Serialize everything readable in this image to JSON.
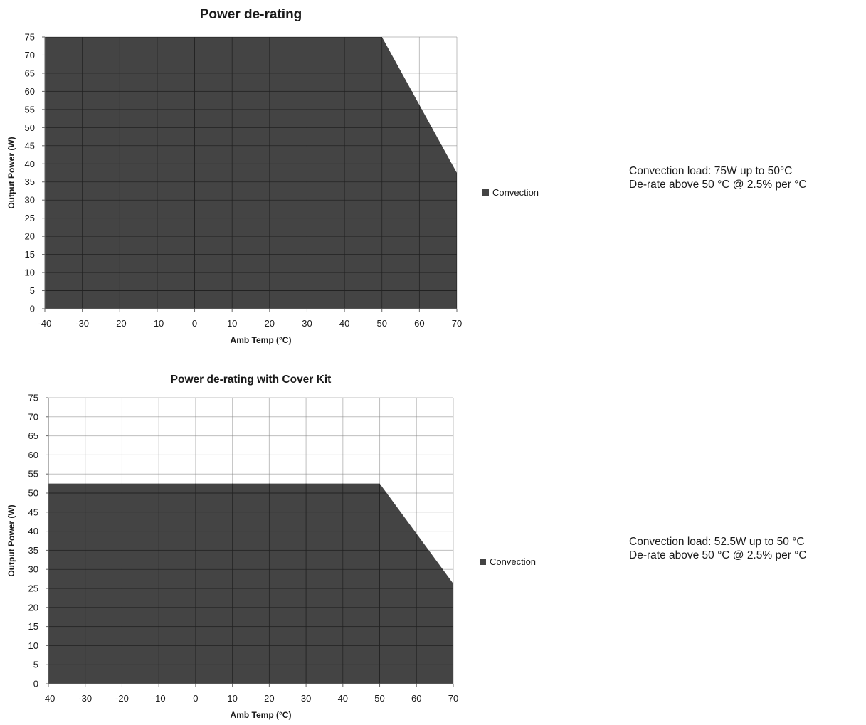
{
  "chart_data": [
    {
      "type": "area",
      "title": "Power de-rating",
      "xlabel": "Amb Temp (°C)",
      "ylabel": "Output Power (W)",
      "xlim": [
        -40,
        70
      ],
      "ylim": [
        0,
        75
      ],
      "xticks": [
        -40,
        -30,
        -20,
        -10,
        0,
        10,
        20,
        30,
        40,
        50,
        60,
        70
      ],
      "yticks": [
        0,
        5,
        10,
        15,
        20,
        25,
        30,
        35,
        40,
        45,
        50,
        55,
        60,
        65,
        70,
        75
      ],
      "grid": true,
      "legend_position": "right",
      "series": [
        {
          "name": "Convection",
          "color": "#444444",
          "x": [
            -40,
            50,
            70
          ],
          "y": [
            75,
            75,
            37.5
          ]
        }
      ]
    },
    {
      "type": "area",
      "title": "Power de-rating with Cover Kit",
      "xlabel": "Amb Temp (°C)",
      "ylabel": "Output Power (W)",
      "xlim": [
        -40,
        70
      ],
      "ylim": [
        0,
        75
      ],
      "xticks": [
        -40,
        -30,
        -20,
        -10,
        0,
        10,
        20,
        30,
        40,
        50,
        60,
        70
      ],
      "yticks": [
        0,
        5,
        10,
        15,
        20,
        25,
        30,
        35,
        40,
        45,
        50,
        55,
        60,
        65,
        70,
        75
      ],
      "grid": true,
      "legend_position": "right",
      "series": [
        {
          "name": "Convection",
          "color": "#444444",
          "x": [
            -40,
            50,
            70
          ],
          "y": [
            52.5,
            52.5,
            26.25
          ]
        }
      ]
    }
  ],
  "notes": [
    {
      "line1": "Convection load: 75W up to 50°C",
      "line2": "De-rate above 50 °C @ 2.5% per °C"
    },
    {
      "line1": "Convection load: 52.5W up to 50 °C",
      "line2": "De-rate above 50 °C @ 2.5% per °C"
    }
  ]
}
